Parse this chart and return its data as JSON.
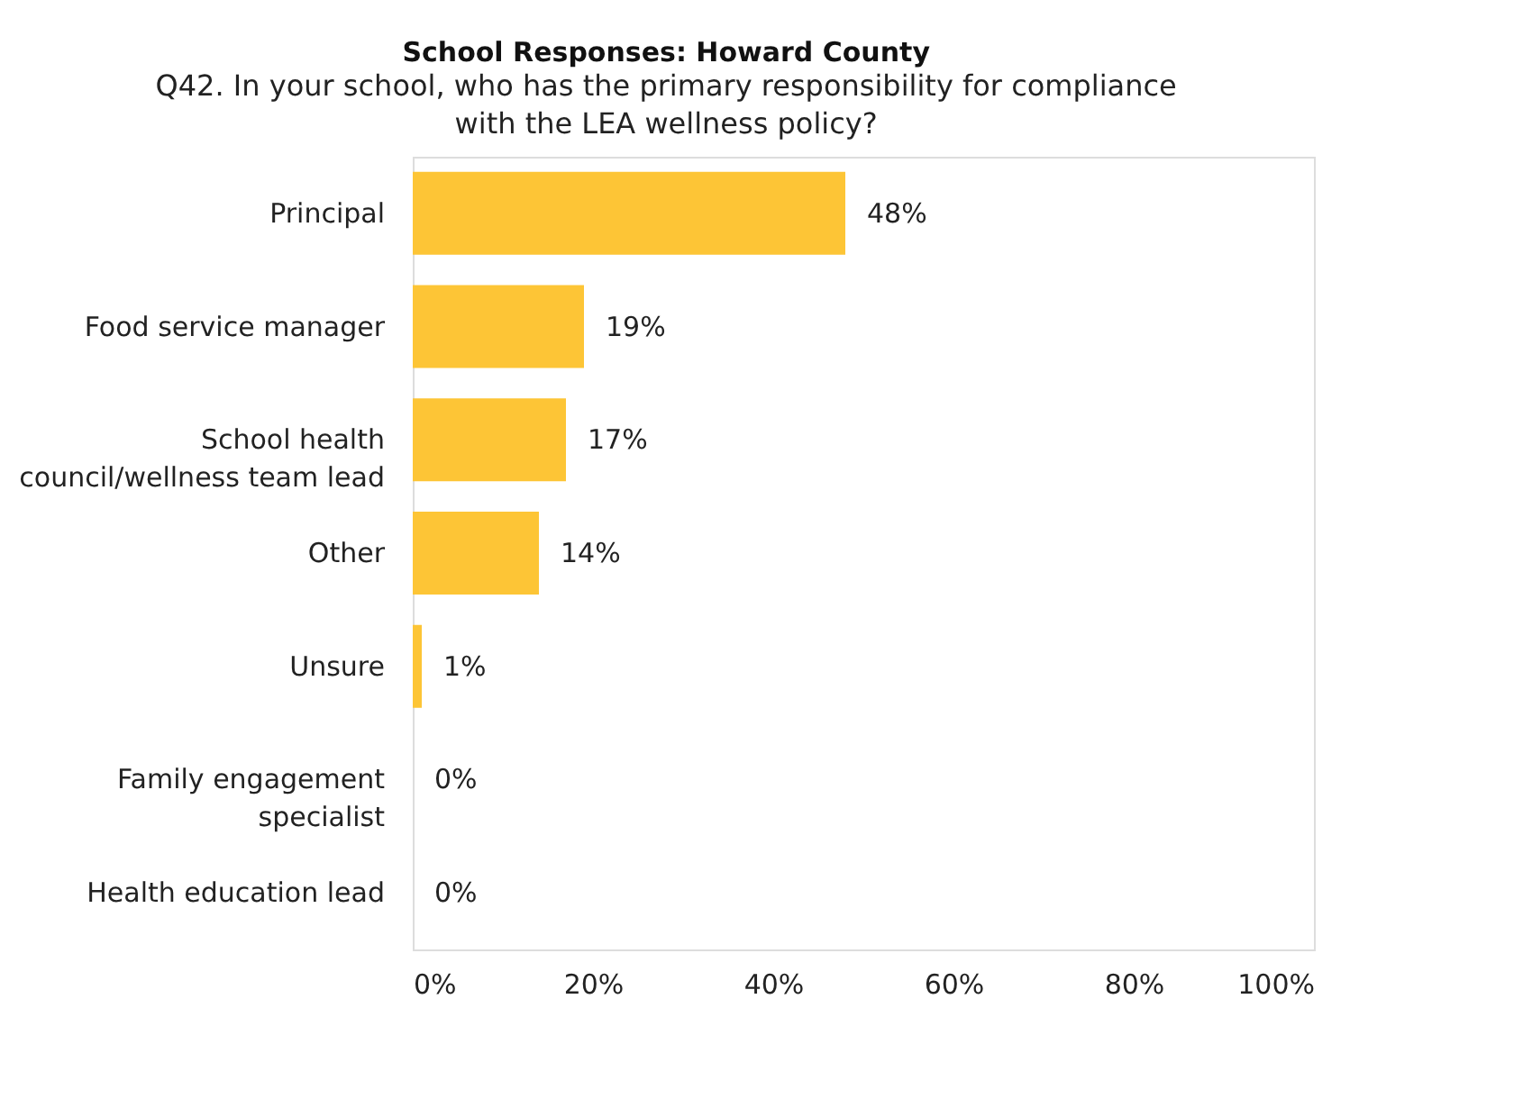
{
  "chart_data": {
    "type": "bar",
    "orientation": "horizontal",
    "title": "School Responses: Howard County",
    "subtitle": "Q42. In your school, who has the primary responsibility for compliance with the LEA wellness policy?",
    "categories": [
      "Principal",
      "Food service manager",
      "School health council/wellness team lead",
      "Other",
      "Unsure",
      "Family engagement specialist",
      "Health education lead"
    ],
    "values": [
      48,
      19,
      17,
      14,
      1,
      0,
      0
    ],
    "value_labels": [
      "48%",
      "19%",
      "17%",
      "14%",
      "1%",
      "0%",
      "0%"
    ],
    "color": "#fdc536",
    "xlim": [
      0,
      100
    ],
    "xticks": [
      {
        "value": 0,
        "label": "0%"
      },
      {
        "value": 20,
        "label": "20%"
      },
      {
        "value": 40,
        "label": "40%"
      },
      {
        "value": 60,
        "label": "60%"
      },
      {
        "value": 80,
        "label": "80%"
      },
      {
        "value": 100,
        "label": "100%"
      }
    ],
    "grid": false
  }
}
